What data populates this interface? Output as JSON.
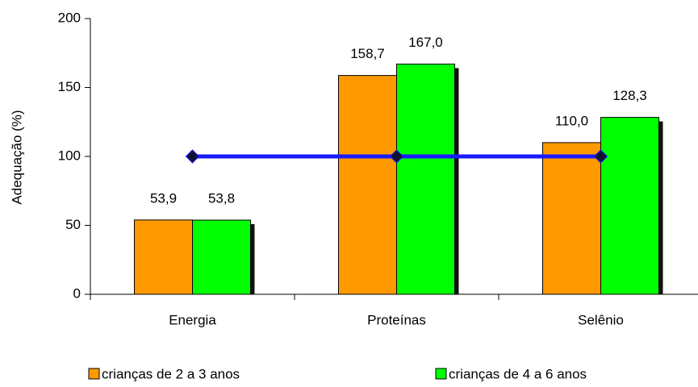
{
  "chart_data": {
    "type": "bar",
    "y_label": "Adequação (%)",
    "categories": [
      "Energia",
      "Proteínas",
      "Selênio"
    ],
    "series": [
      {
        "name": "crianças de 2 a 3 anos",
        "color": "#ff9900",
        "values": [
          53.9,
          158.7,
          110.0
        ],
        "value_labels": [
          "53,9",
          "158,7",
          "110,0"
        ]
      },
      {
        "name": "crianças de 4 a 6 anos",
        "color": "#00ff00",
        "values": [
          53.8,
          167.0,
          128.3
        ],
        "value_labels": [
          "53,8",
          "167,0",
          "128,3"
        ]
      },
      {
        "type": "line",
        "color": "#1a1aff",
        "values": [
          100,
          100,
          100
        ]
      }
    ],
    "ylim": [
      0,
      200
    ],
    "yticks": [
      0,
      50,
      100,
      150,
      200
    ],
    "legend": "bottom"
  }
}
